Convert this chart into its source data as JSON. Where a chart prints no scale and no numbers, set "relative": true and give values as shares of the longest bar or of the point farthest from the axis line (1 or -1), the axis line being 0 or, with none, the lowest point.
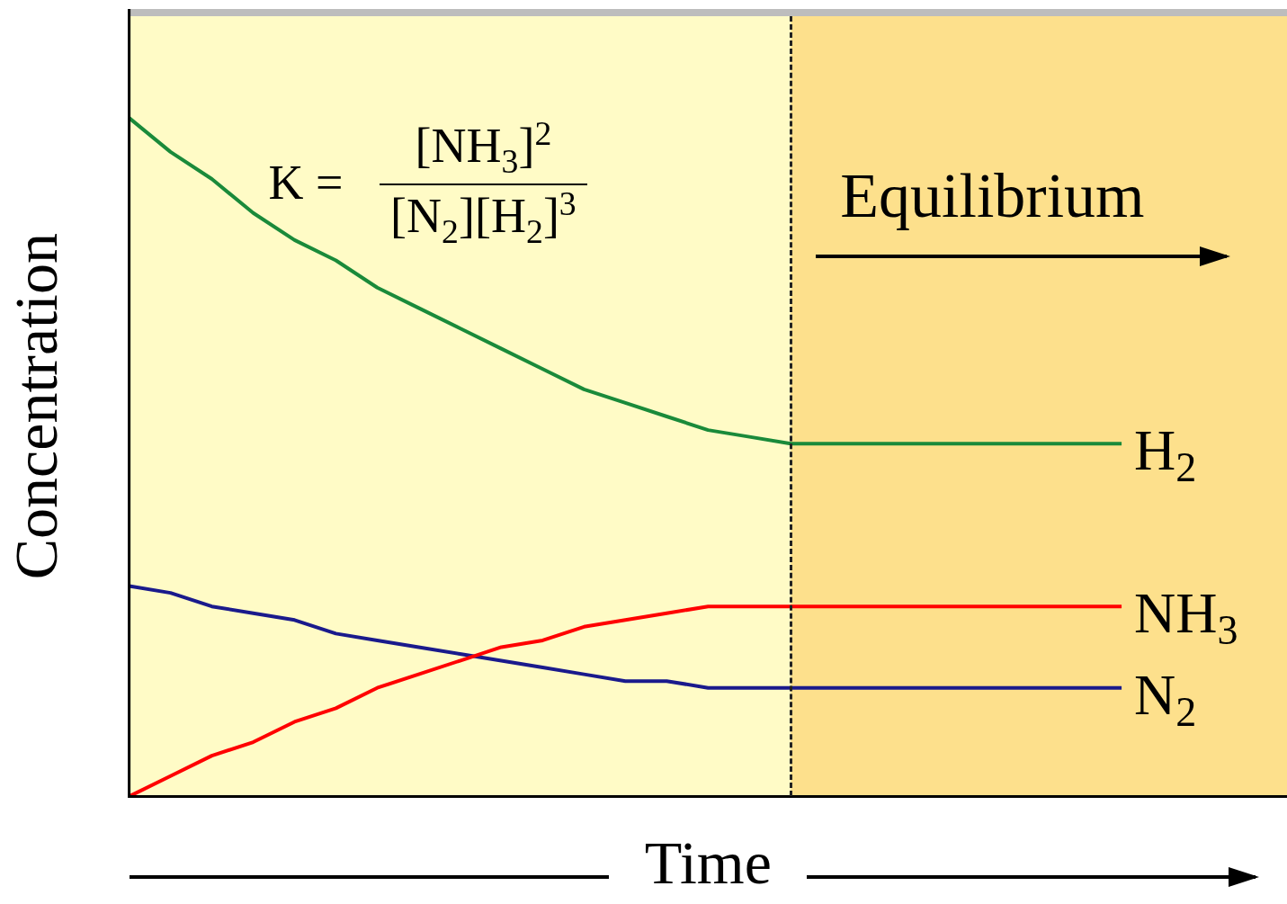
{
  "chart_data": {
    "type": "line",
    "relative": true,
    "xlabel": "Time",
    "ylabel": "Concentration",
    "marker": "none",
    "categories": [
      null,
      null,
      null,
      null,
      null,
      null,
      null,
      null,
      null,
      null,
      null,
      null,
      null,
      null,
      null,
      null,
      null,
      null,
      null,
      null,
      null,
      null,
      null,
      null,
      null,
      null,
      null,
      null,
      null
    ],
    "series": [
      {
        "name": "H$_{2}$",
        "color": "#1a8a3a",
        "values": [
          1.0,
          0.95,
          0.91,
          0.86,
          0.82,
          0.79,
          0.75,
          0.72,
          0.69,
          0.66,
          0.63,
          0.6,
          0.58,
          0.56,
          0.54,
          0.53,
          0.52,
          0.52,
          0.52,
          0.52,
          0.52,
          0.52,
          0.52,
          0.52,
          0.52,
          null,
          null,
          null,
          null
        ]
      },
      {
        "name": "NH$_{3}$",
        "color": "#ff0000",
        "values": [
          0.0,
          0.03,
          0.06,
          0.08,
          0.11,
          0.13,
          0.16,
          0.18,
          0.2,
          0.22,
          0.23,
          0.25,
          0.26,
          0.27,
          0.28,
          0.28,
          0.28,
          0.28,
          0.28,
          0.28,
          0.28,
          0.28,
          0.28,
          0.28,
          0.28,
          null,
          null,
          null,
          null
        ]
      },
      {
        "name": "N$_{2}$",
        "color": "#1a1a8c",
        "values": [
          0.31,
          0.3,
          0.28,
          0.27,
          0.26,
          0.24,
          0.23,
          0.22,
          0.21,
          0.2,
          0.19,
          0.18,
          0.17,
          0.17,
          0.16,
          0.16,
          0.16,
          0.16,
          0.16,
          0.16,
          0.16,
          0.16,
          0.16,
          0.16,
          0.16,
          null,
          null,
          null,
          null
        ]
      }
    ],
    "annotations": [
      "K =",
      "[NH$_{3}$]$^{2}$",
      "[N$_{2}$][H$_{2}$]$^{3}$",
      "Equilibrium"
    ]
  }
}
